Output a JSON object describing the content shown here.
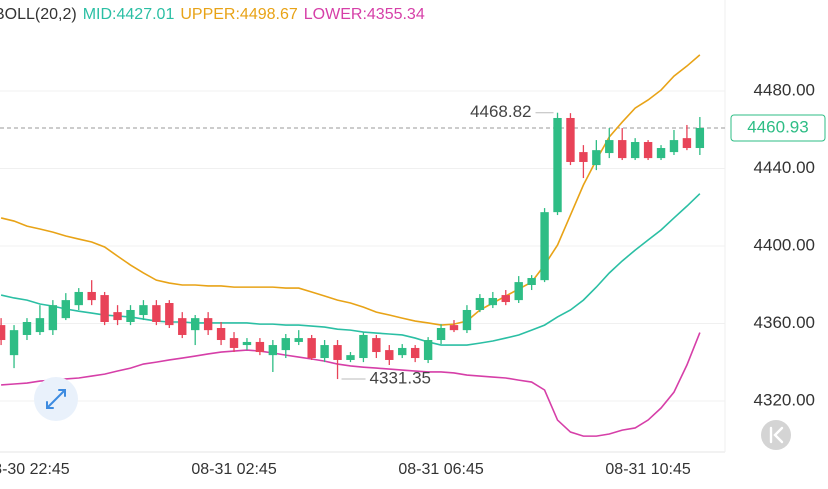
{
  "chart_data": {
    "type": "candlestick",
    "indicator": "BOLL(20,2)",
    "separator": ":",
    "categories": [
      null,
      null,
      "08-30 22:45",
      null,
      null,
      null,
      null,
      null,
      null,
      null,
      null,
      null,
      null,
      null,
      null,
      null,
      null,
      null,
      "08-31 02:45",
      null,
      null,
      null,
      null,
      null,
      null,
      null,
      null,
      null,
      null,
      null,
      null,
      null,
      null,
      null,
      "08-31 06:45",
      null,
      null,
      null,
      null,
      null,
      null,
      null,
      null,
      null,
      null,
      null,
      null,
      null,
      null,
      null,
      "08-31 10:45",
      null,
      null,
      null,
      null
    ],
    "open": [
      4359.2,
      4343.7,
      4354.1,
      4355.6,
      4356.6,
      4362.8,
      4369.5,
      4376.3,
      4374.7,
      4365.9,
      4360.8,
      4364.4,
      4369.5,
      4370.6,
      4362.8,
      4356.6,
      4362.8,
      4357.7,
      4352.5,
      4348.9,
      4350.5,
      4343.7,
      4346.3,
      4350.5,
      4352.5,
      4342.2,
      4348.9,
      4341.2,
      4342.2,
      4352.5,
      4346.3,
      4343.7,
      4347.4,
      4341.2,
      4351.5,
      4359.2,
      4356.6,
      4367.0,
      4369.5,
      4374.7,
      4372.1,
      4379.9,
      4382.4,
      4417.5,
      4466.1,
      4448.5,
      4441.8,
      4448.0,
      4454.7,
      4445.4,
      4453.7,
      4445.4,
      4448.5,
      4455.7,
      4450.6
    ],
    "high": [
      4362.8,
      4359.2,
      4362.8,
      4369.5,
      4372.1,
      4375.7,
      4378.3,
      4382.4,
      4376.3,
      4369.5,
      4369.5,
      4372.1,
      4372.1,
      4372.1,
      4365.9,
      4364.4,
      4365.9,
      4360.8,
      4355.6,
      4352.5,
      4352.5,
      4351.5,
      4354.6,
      4356.6,
      4354.1,
      4351.5,
      4351.5,
      4345.3,
      4355.6,
      4354.1,
      4348.9,
      4349.4,
      4348.9,
      4353.0,
      4359.7,
      4361.8,
      4369.5,
      4375.2,
      4376.3,
      4377.3,
      4384.5,
      4385.0,
      4419.6,
      4468.82,
      4468.6,
      4452.1,
      4454.7,
      4460.9,
      4460.9,
      4455.7,
      4454.7,
      4452.1,
      4459.9,
      4462.5,
      4466.6
    ],
    "low": [
      4348.9,
      4337.0,
      4351.5,
      4354.1,
      4354.1,
      4361.8,
      4367.0,
      4369.5,
      4359.2,
      4359.2,
      4359.2,
      4361.8,
      4359.2,
      4357.7,
      4352.5,
      4348.9,
      4354.1,
      4348.9,
      4345.3,
      4346.3,
      4343.7,
      4335.0,
      4342.2,
      4348.9,
      4341.2,
      4340.1,
      4331.35,
      4340.1,
      4340.1,
      4342.2,
      4338.6,
      4342.2,
      4340.1,
      4339.6,
      4349.4,
      4355.6,
      4355.1,
      4365.9,
      4368.0,
      4369.5,
      4370.6,
      4377.3,
      4381.4,
      4416.0,
      4441.8,
      4435.1,
      4439.2,
      4445.4,
      4444.4,
      4444.4,
      4444.4,
      4444.4,
      4447.0,
      4449.5,
      4447.0
    ],
    "close": [
      4351.5,
      4356.6,
      4360.8,
      4362.8,
      4369.5,
      4372.1,
      4376.3,
      4372.1,
      4360.8,
      4361.8,
      4367.0,
      4369.5,
      4360.8,
      4359.2,
      4354.1,
      4362.8,
      4356.6,
      4351.5,
      4347.4,
      4350.5,
      4345.3,
      4348.9,
      4352.5,
      4352.5,
      4342.2,
      4348.9,
      4341.2,
      4343.7,
      4354.1,
      4345.3,
      4341.2,
      4347.4,
      4342.2,
      4351.5,
      4357.7,
      4356.6,
      4367.0,
      4373.2,
      4373.2,
      4371.1,
      4381.4,
      4383.5,
      4417.5,
      4466.1,
      4443.4,
      4443.4,
      4449.5,
      4454.7,
      4445.4,
      4453.7,
      4445.4,
      4450.6,
      4454.7,
      4450.6,
      4460.93
    ],
    "up_color": "#2ebd85",
    "down_color": "#e84358",
    "series": [
      {
        "name": "MID",
        "color": "#2bbfa4",
        "values": [
          4374.7,
          4373.2,
          4372.1,
          4370.1,
          4369.0,
          4367.5,
          4366.4,
          4365.4,
          4364.4,
          4363.9,
          4363.4,
          4362.3,
          4361.3,
          4360.8,
          4360.8,
          4360.3,
          4360.3,
          4360.3,
          4360.3,
          4360.3,
          4359.7,
          4359.7,
          4359.2,
          4359.2,
          4358.7,
          4358.2,
          4357.1,
          4356.6,
          4355.6,
          4355.1,
          4354.6,
          4354.1,
          4352.5,
          4350.5,
          4348.9,
          4348.9,
          4348.9,
          4349.9,
          4351.0,
          4352.5,
          4354.1,
          4356.6,
          4359.2,
          4363.4,
          4367.0,
          4372.1,
          4378.8,
          4386.1,
          4392.3,
          4397.9,
          4403.1,
          4408.3,
          4414.5,
          4420.6,
          4427.01
        ]
      },
      {
        "name": "UPPER",
        "color": "#e8a317",
        "values": [
          4414.5,
          4412.9,
          4410.3,
          4408.8,
          4407.2,
          4405.2,
          4403.6,
          4402.1,
          4399.5,
          4394.8,
          4390.2,
          4386.1,
          4382.4,
          4380.9,
          4379.9,
          4379.9,
          4379.4,
          4379.4,
          4378.8,
          4378.8,
          4378.8,
          4378.8,
          4378.3,
          4378.3,
          4376.3,
          4374.2,
          4372.1,
          4370.6,
          4368.5,
          4365.9,
          4364.4,
          4362.8,
          4361.3,
          4360.3,
          4359.2,
          4359.7,
          4361.3,
          4367.0,
          4370.6,
          4374.2,
          4377.8,
          4381.4,
          4390.2,
          4400.5,
          4416.0,
          4431.5,
          4444.4,
          4456.3,
          4464.0,
          4471.2,
          4475.4,
          4480.5,
          4487.7,
          4492.9,
          4498.67
        ]
      },
      {
        "name": "LOWER",
        "color": "#d63fa8",
        "values": [
          4328.3,
          4328.8,
          4329.3,
          4330.3,
          4330.8,
          4331.4,
          4331.9,
          4332.9,
          4333.9,
          4335.5,
          4337.0,
          4339.1,
          4340.1,
          4341.2,
          4342.2,
          4343.2,
          4344.3,
          4345.3,
          4345.8,
          4346.3,
          4345.8,
          4344.8,
          4343.7,
          4342.7,
          4341.7,
          4340.6,
          4339.1,
          4338.1,
          4337.5,
          4337.0,
          4336.5,
          4336.0,
          4335.5,
          4335.0,
          4335.0,
          4334.5,
          4333.4,
          4332.9,
          4332.4,
          4331.9,
          4330.8,
          4329.8,
          4325.7,
          4310.2,
          4304.0,
          4301.9,
          4301.9,
          4303.0,
          4305.0,
          4306.1,
          4310.2,
          4316.4,
          4324.6,
          4338.6,
          4355.34
        ]
      }
    ],
    "ylim": [
      4293.7,
      4527.0
    ],
    "yticks": [
      {
        "value": 4320,
        "label": "4320.00"
      },
      {
        "value": 4360,
        "label": "4360.00"
      },
      {
        "value": 4400,
        "label": "4400.00"
      },
      {
        "value": 4440,
        "label": "4440.00"
      },
      {
        "value": 4480,
        "label": "4480.00"
      }
    ],
    "grid": true
  }
}
